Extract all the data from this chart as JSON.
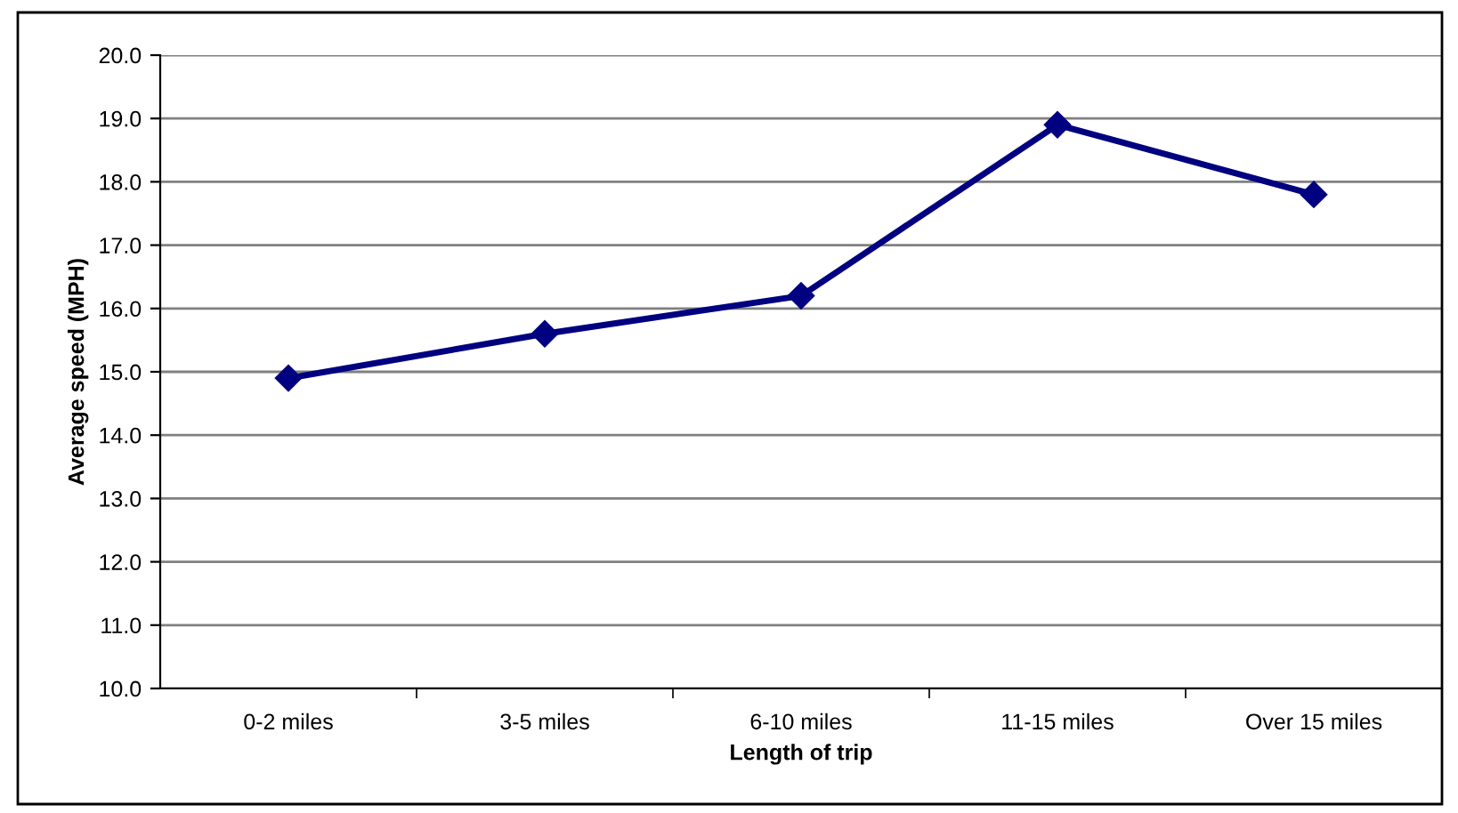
{
  "chart_data": {
    "type": "line",
    "xlabel": "Length of trip",
    "ylabel": "Average speed (MPH)",
    "categories": [
      "0-2 miles",
      "3-5 miles",
      "6-10 miles",
      "11-15 miles",
      "Over 15 miles"
    ],
    "series": [
      {
        "color": "#000080",
        "values": [
          14.9,
          15.6,
          16.2,
          18.9,
          17.8
        ]
      }
    ],
    "ylim": [
      10,
      20
    ],
    "yticks": [
      {
        "value": 10,
        "label": "10.0"
      },
      {
        "value": 11,
        "label": "11.0"
      },
      {
        "value": 12,
        "label": "12.0"
      },
      {
        "value": 13,
        "label": "13.0"
      },
      {
        "value": 14,
        "label": "14.0"
      },
      {
        "value": 15,
        "label": "15.0"
      },
      {
        "value": 16,
        "label": "16.0"
      },
      {
        "value": 17,
        "label": "17.0"
      },
      {
        "value": 18,
        "label": "18.0"
      },
      {
        "value": 19,
        "label": "19.0"
      },
      {
        "value": 20,
        "label": "20.0"
      }
    ],
    "grid": "y",
    "marker": "diamond",
    "line_style": "solid"
  }
}
